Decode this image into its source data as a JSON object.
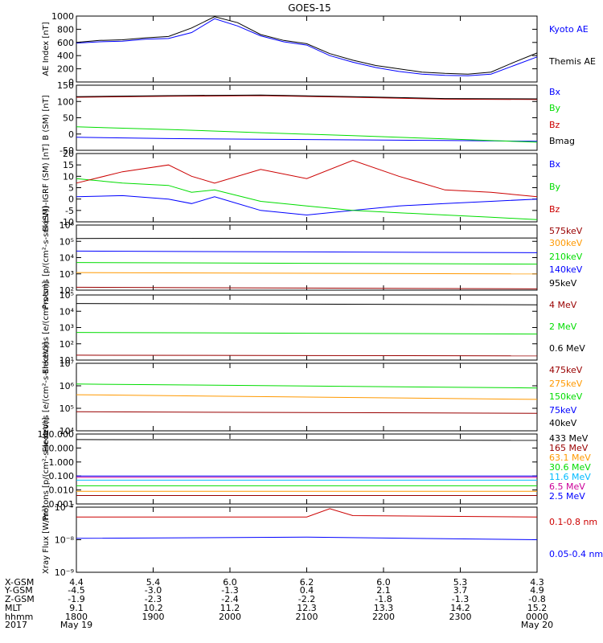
{
  "title": "GOES-15",
  "colors": {
    "black": "#000000",
    "blue": "#0000ff",
    "green": "#00dd00",
    "red": "#cc0000",
    "orange": "#ff9900",
    "cyan": "#00bbff",
    "darkred": "#990000",
    "magenta": "#cc0099"
  },
  "chart_data": [
    {
      "type": "line",
      "ylabel": "AE Index [nT]",
      "ylim": [
        0,
        1000
      ],
      "yscale": "linear",
      "yticks": [
        "0",
        "200",
        "400",
        "600",
        "800",
        "1000"
      ],
      "series": [
        {
          "name": "Kyoto AE",
          "color": "#0000ff",
          "x": [
            0,
            0.05,
            0.1,
            0.15,
            0.2,
            0.25,
            0.3,
            0.35,
            0.4,
            0.45,
            0.5,
            0.55,
            0.6,
            0.65,
            0.7,
            0.75,
            0.8,
            0.85,
            0.9,
            0.95,
            1
          ],
          "y": [
            590,
            610,
            620,
            650,
            660,
            750,
            960,
            850,
            700,
            610,
            560,
            400,
            300,
            220,
            160,
            120,
            100,
            95,
            120,
            250,
            380
          ]
        },
        {
          "name": "Themis AE",
          "color": "#000000",
          "x": [
            0,
            0.05,
            0.1,
            0.15,
            0.2,
            0.25,
            0.3,
            0.35,
            0.4,
            0.45,
            0.5,
            0.55,
            0.6,
            0.65,
            0.7,
            0.75,
            0.8,
            0.85,
            0.9,
            0.95,
            1
          ],
          "y": [
            600,
            630,
            640,
            670,
            690,
            820,
            990,
            900,
            720,
            630,
            580,
            430,
            330,
            250,
            200,
            150,
            130,
            120,
            150,
            300,
            440
          ]
        }
      ]
    },
    {
      "type": "line",
      "ylabel": "B (SM) [nT]",
      "ylim": [
        -50,
        150
      ],
      "yscale": "linear",
      "yticks": [
        "-50",
        "0",
        "50",
        "100",
        "150"
      ],
      "series": [
        {
          "name": "Bx",
          "color": "#0000ff",
          "x": [
            0,
            0.2,
            0.4,
            0.6,
            0.8,
            1
          ],
          "y": [
            -10,
            -14,
            -16,
            -18,
            -20,
            -22
          ]
        },
        {
          "name": "By",
          "color": "#00dd00",
          "x": [
            0,
            0.2,
            0.4,
            0.6,
            0.8,
            1
          ],
          "y": [
            22,
            14,
            4,
            -5,
            -15,
            -25
          ]
        },
        {
          "name": "Bz",
          "color": "#cc0000",
          "x": [
            0,
            0.2,
            0.4,
            0.6,
            0.8,
            1
          ],
          "y": [
            113,
            116,
            118,
            113,
            107,
            106
          ]
        },
        {
          "name": "Bmag",
          "color": "#000000",
          "x": [
            0,
            0.2,
            0.4,
            0.6,
            0.8,
            1
          ],
          "y": [
            115,
            118,
            120,
            115,
            109,
            108
          ]
        }
      ]
    },
    {
      "type": "line",
      "ylabel": "B (SM)-IGRF (SM) [nT]",
      "ylim": [
        -10,
        20
      ],
      "yscale": "linear",
      "yticks": [
        "-10",
        "-5",
        "0",
        "5",
        "10",
        "15",
        "20"
      ],
      "series": [
        {
          "name": "Bx",
          "color": "#0000ff",
          "x": [
            0,
            0.1,
            0.2,
            0.25,
            0.3,
            0.4,
            0.5,
            0.6,
            0.7,
            0.8,
            0.9,
            1
          ],
          "y": [
            1,
            1.5,
            0,
            -2,
            1,
            -5,
            -7,
            -5,
            -3,
            -2,
            -1,
            0
          ]
        },
        {
          "name": "By",
          "color": "#00dd00",
          "x": [
            0,
            0.1,
            0.2,
            0.25,
            0.3,
            0.4,
            0.5,
            0.6,
            0.7,
            0.8,
            0.9,
            1
          ],
          "y": [
            9,
            7,
            6,
            3,
            4,
            -1,
            -3,
            -5,
            -6,
            -7,
            -8,
            -9
          ]
        },
        {
          "name": "Bz",
          "color": "#cc0000",
          "x": [
            0,
            0.1,
            0.2,
            0.25,
            0.3,
            0.4,
            0.5,
            0.6,
            0.7,
            0.8,
            0.9,
            1
          ],
          "y": [
            7,
            12,
            15,
            10,
            7,
            13,
            9,
            17,
            10,
            4,
            3,
            1
          ]
        }
      ]
    },
    {
      "type": "line",
      "ylabel": "Protons [p/(cm²-s-sr-keV)]",
      "ylim": [
        100,
        1000000
      ],
      "yscale": "log",
      "yticks": [
        "10²",
        "10³",
        "10⁴",
        "10⁵",
        "10⁶"
      ],
      "series": [
        {
          "name": "575keV",
          "color": "#990000",
          "x": [
            0,
            1
          ],
          "y": [
            150,
            120
          ]
        },
        {
          "name": "300keV",
          "color": "#ff9900",
          "x": [
            0,
            1
          ],
          "y": [
            1200,
            1000
          ]
        },
        {
          "name": "210keV",
          "color": "#00dd00",
          "x": [
            0,
            1
          ],
          "y": [
            5000,
            4000
          ]
        },
        {
          "name": "140keV",
          "color": "#0000ff",
          "x": [
            0,
            1
          ],
          "y": [
            25000,
            20000
          ]
        },
        {
          "name": "95keV",
          "color": "#000000",
          "x": [
            0,
            1
          ],
          "y": [
            150000,
            160000
          ]
        }
      ]
    },
    {
      "type": "line",
      "ylabel": "Electrons [e/(cm²-s-sr)]",
      "ylim": [
        10,
        100000
      ],
      "yscale": "log",
      "yticks": [
        "10¹",
        "10²",
        "10³",
        "10⁴",
        "10⁵"
      ],
      "series": [
        {
          "name": "4 MeV",
          "color": "#990000",
          "x": [
            0,
            1
          ],
          "y": [
            20,
            18
          ]
        },
        {
          "name": "2 MeV",
          "color": "#00dd00",
          "x": [
            0,
            1
          ],
          "y": [
            500,
            400
          ]
        },
        {
          "name": "0.6 MeV",
          "color": "#000000",
          "x": [
            0,
            1
          ],
          "y": [
            30000,
            25000
          ]
        }
      ]
    },
    {
      "type": "line",
      "ylabel": "Electrons [e/(cm²-s-sr-keV)]",
      "ylim": [
        10000,
        10000000
      ],
      "yscale": "log",
      "yticks": [
        "10⁴",
        "10⁵",
        "10⁶",
        "10⁷"
      ],
      "series": [
        {
          "name": "475keV",
          "color": "#990000",
          "x": [
            0,
            1
          ],
          "y": [
            70000,
            60000
          ]
        },
        {
          "name": "275keV",
          "color": "#ff9900",
          "x": [
            0,
            1
          ],
          "y": [
            400000,
            250000
          ]
        },
        {
          "name": "150keV",
          "color": "#00dd00",
          "x": [
            0,
            1
          ],
          "y": [
            1200000,
            800000
          ]
        },
        {
          "name": "75keV",
          "color": "#0000ff",
          "x": [
            0,
            1
          ],
          "y": [
            null,
            null
          ]
        },
        {
          "name": "40keV",
          "color": "#000000",
          "x": [
            0,
            1
          ],
          "y": [
            null,
            null
          ]
        }
      ]
    },
    {
      "type": "line",
      "ylabel": "Protons [p/(cm²-s-sr-keV)]",
      "ylim": [
        0.001,
        100
      ],
      "yscale": "log",
      "yticks": [
        "0.001",
        "0.010",
        "0.100",
        "1.000",
        "10.000",
        "100.000"
      ],
      "series": [
        {
          "name": "433 MeV",
          "color": "#000000",
          "x": [
            0,
            1
          ],
          "y": [
            40,
            35
          ]
        },
        {
          "name": "165 MeV",
          "color": "#990000",
          "x": [
            0,
            1
          ],
          "y": [
            0.004,
            0.004
          ]
        },
        {
          "name": "63.1 MeV",
          "color": "#ff9900",
          "x": [
            0,
            1
          ],
          "y": [
            0.008,
            0.008
          ]
        },
        {
          "name": "30.6 MeV",
          "color": "#00dd00",
          "x": [
            0,
            1
          ],
          "y": [
            0.02,
            0.02
          ]
        },
        {
          "name": "11.6 MeV",
          "color": "#00bbff",
          "x": [
            0,
            1
          ],
          "y": [
            0.05,
            0.05
          ]
        },
        {
          "name": "6.5 MeV",
          "color": "#cc0099",
          "x": [
            0,
            1
          ],
          "y": [
            0.08,
            0.08
          ]
        },
        {
          "name": "2.5 MeV",
          "color": "#0000ff",
          "x": [
            0,
            1
          ],
          "y": [
            0.1,
            0.1
          ]
        }
      ]
    },
    {
      "type": "line",
      "ylabel": "Xray Flux [W/m²]",
      "ylim": [
        1e-09,
        1e-07
      ],
      "yscale": "log",
      "yticks": [
        "10⁻⁹",
        "10⁻⁸",
        "10⁻⁷"
      ],
      "series": [
        {
          "name": "0.1-0.8 nm",
          "color": "#cc0000",
          "x": [
            0,
            0.5,
            0.55,
            0.6,
            1
          ],
          "y": [
            5e-08,
            5e-08,
            9e-08,
            5.5e-08,
            5e-08
          ]
        },
        {
          "name": "0.05-0.4 nm",
          "color": "#0000ff",
          "x": [
            0,
            0.5,
            1
          ],
          "y": [
            1.1e-08,
            1.2e-08,
            1e-08
          ]
        }
      ]
    }
  ],
  "bottom_axis": {
    "rows": [
      {
        "label": "X-GSM",
        "values": [
          "4.4",
          "5.4",
          "6.0",
          "6.2",
          "6.0",
          "5.3",
          "4.3"
        ]
      },
      {
        "label": "Y-GSM",
        "values": [
          "-4.5",
          "-3.0",
          "-1.3",
          "0.4",
          "2.1",
          "3.7",
          "4.9"
        ]
      },
      {
        "label": "Z-GSM",
        "values": [
          "-1.9",
          "-2.3",
          "-2.4",
          "-2.2",
          "-1.8",
          "-1.3",
          "-0.8"
        ]
      },
      {
        "label": "MLT",
        "values": [
          "9.1",
          "10.2",
          "11.2",
          "12.3",
          "13.3",
          "14.2",
          "15.2"
        ]
      },
      {
        "label": "hhmm",
        "values": [
          "1800",
          "1900",
          "2000",
          "2100",
          "2200",
          "2300",
          "0000"
        ]
      }
    ],
    "year": "2017",
    "date_start": "May 19",
    "date_end": "May 20"
  }
}
